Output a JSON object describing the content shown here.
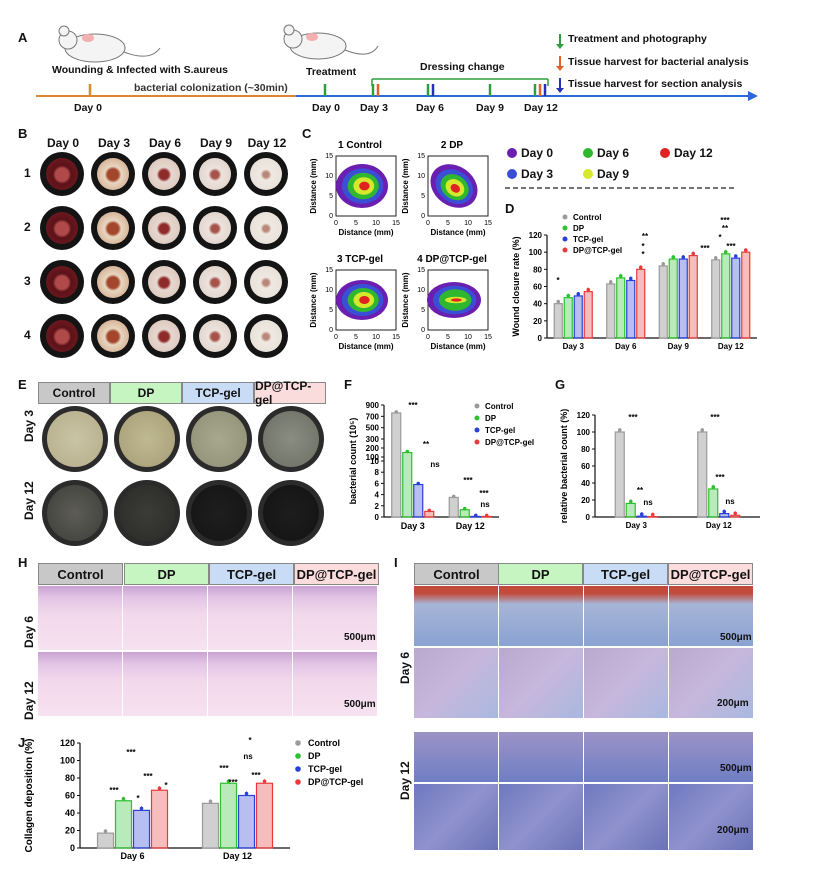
{
  "panels": {
    "A": "A",
    "B": "B",
    "C": "C",
    "D": "D",
    "E": "E",
    "F": "F",
    "G": "G",
    "H": "H",
    "I": "I",
    "J": "J"
  },
  "timeline": {
    "wounding": "Wounding & Infected with S.aureus",
    "colonization": "bacterial colonization (~30min)",
    "treatment": "Treatment",
    "dressing": "Dressing change",
    "day0_left": "Day 0",
    "days": [
      "Day 0",
      "Day 3",
      "Day 6",
      "Day 9",
      "Day 12"
    ],
    "legend": [
      {
        "label": "Treatment and photography",
        "color": "#2e9e3e"
      },
      {
        "label": "Tissue harvest for bacterial analysis",
        "color": "#e0622a"
      },
      {
        "label": "Tissue harvest for section analysis",
        "color": "#2432b8"
      }
    ]
  },
  "panelB": {
    "col_headers": [
      "Day 0",
      "Day 3",
      "Day 6",
      "Day 9",
      "Day 12"
    ],
    "row_labels": [
      "1",
      "2",
      "3",
      "4"
    ]
  },
  "panelC": {
    "titles": [
      "1 Control",
      "2 DP",
      "3 TCP-gel",
      "4 DP@TCP-gel"
    ],
    "xlabel": "Distance (mm)",
    "ylabel": "Distance (mm)",
    "ticks": [
      "0",
      "5",
      "10",
      "15"
    ],
    "legend": [
      {
        "label": "Day 0",
        "color": "#6a1fb0"
      },
      {
        "label": "Day 3",
        "color": "#3a4fd6"
      },
      {
        "label": "Day 6",
        "color": "#2fb82f"
      },
      {
        "label": "Day 9",
        "color": "#d6e82c"
      },
      {
        "label": "Day 12",
        "color": "#e02222"
      }
    ]
  },
  "colors": {
    "Control": "#9a9a9a",
    "DP": "#2ec02e",
    "TCP-gel": "#2840d8",
    "DP@TCP-gel": "#e83a3a"
  },
  "chart_data": [
    {
      "id": "D",
      "type": "bar",
      "ylabel": "Wound closure rate (%)",
      "categories": [
        "Day 3",
        "Day 6",
        "Day 9",
        "Day 12"
      ],
      "ylim": [
        0,
        120
      ],
      "yticks": [
        "0",
        "20",
        "40",
        "60",
        "80",
        "100",
        "120"
      ],
      "series": [
        {
          "name": "Control",
          "values": [
            40,
            63,
            84,
            91
          ]
        },
        {
          "name": "DP",
          "values": [
            47,
            70,
            92,
            98
          ]
        },
        {
          "name": "TCP-gel",
          "values": [
            49,
            67,
            92,
            93
          ]
        },
        {
          "name": "DP@TCP-gel",
          "values": [
            54,
            80,
            96,
            100
          ]
        }
      ],
      "annotations": [
        "*",
        "*",
        "*",
        "**",
        "***",
        "***",
        "**",
        "*",
        "***"
      ]
    },
    {
      "id": "F",
      "type": "bar",
      "ylabel": "bacterial count (10⁵)",
      "categories": [
        "Day 3",
        "Day 12"
      ],
      "yticks": [
        "0",
        "2",
        "4",
        "6",
        "8",
        "10",
        "100",
        "200",
        "300",
        "500",
        "700",
        "900"
      ],
      "series": [
        {
          "name": "Control",
          "values": [
            760,
            3.5
          ]
        },
        {
          "name": "DP",
          "values": [
            150,
            1.3
          ]
        },
        {
          "name": "TCP-gel",
          "values": [
            5.8,
            0.1
          ]
        },
        {
          "name": "DP@TCP-gel",
          "values": [
            1.0,
            0.1
          ]
        }
      ],
      "annotations": [
        "***",
        "**",
        "ns",
        "***",
        "***",
        "ns"
      ]
    },
    {
      "id": "G",
      "type": "bar",
      "ylabel": "relative bacterial count (%)",
      "categories": [
        "Day 3",
        "Day 12"
      ],
      "ylim": [
        0,
        120
      ],
      "yticks": [
        "0",
        "20",
        "40",
        "60",
        "80",
        "100",
        "120"
      ],
      "series": [
        {
          "name": "Control",
          "values": [
            100,
            100
          ]
        },
        {
          "name": "DP",
          "values": [
            16,
            33
          ]
        },
        {
          "name": "TCP-gel",
          "values": [
            1,
            4
          ]
        },
        {
          "name": "DP@TCP-gel",
          "values": [
            0.5,
            2
          ]
        }
      ],
      "annotations": [
        "***",
        "**",
        "ns",
        "***",
        "***",
        "ns"
      ]
    },
    {
      "id": "J",
      "type": "bar",
      "ylabel": "Collagen deposition (%)",
      "categories": [
        "Day 6",
        "Day 12"
      ],
      "ylim": [
        0,
        120
      ],
      "yticks": [
        "0",
        "20",
        "40",
        "60",
        "80",
        "100",
        "120"
      ],
      "series": [
        {
          "name": "Control",
          "values": [
            17,
            51
          ]
        },
        {
          "name": "DP",
          "values": [
            54,
            74
          ]
        },
        {
          "name": "TCP-gel",
          "values": [
            43,
            60
          ]
        },
        {
          "name": "DP@TCP-gel",
          "values": [
            66,
            74
          ]
        }
      ],
      "annotations": [
        "***",
        "*",
        "***",
        "***",
        "*",
        "***",
        "***",
        "*",
        "ns",
        "***"
      ]
    }
  ],
  "group_headers": [
    "Control",
    "DP",
    "TCP-gel",
    "DP@TCP-gel"
  ],
  "group_header_colors": [
    "#c8c8c8",
    "#c6f5c2",
    "#c8dcf5",
    "#fadcdc"
  ],
  "row_days": {
    "day3": "Day 3",
    "day6": "Day 6",
    "day12": "Day 12"
  },
  "scale": {
    "s500": "500μm",
    "s200": "200μm"
  }
}
